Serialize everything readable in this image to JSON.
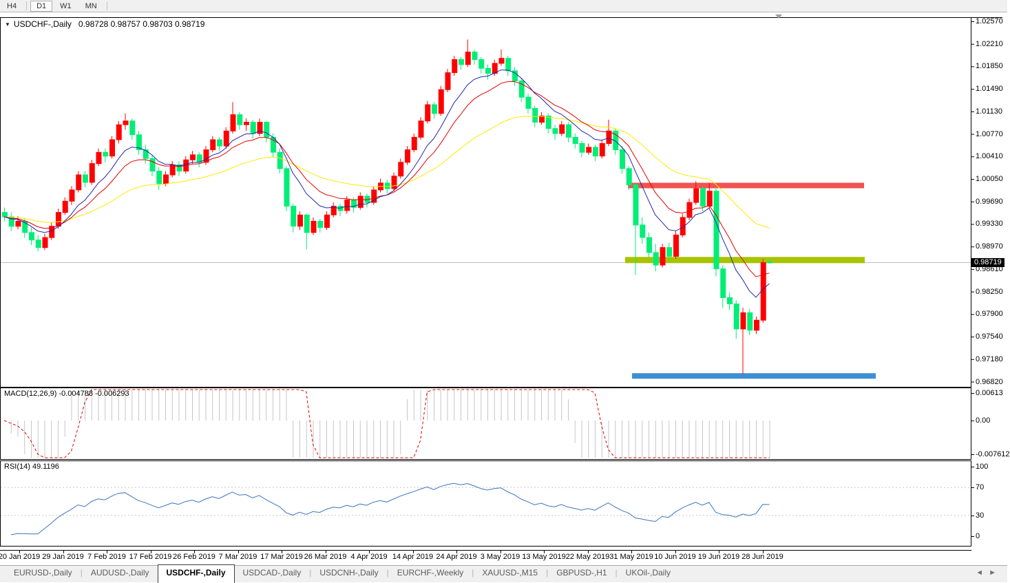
{
  "toolbar": {
    "timeframes": [
      {
        "label": "H4",
        "active": false,
        "sep_after": true
      },
      {
        "label": "D1",
        "active": true,
        "sep_after": false
      },
      {
        "label": "W1",
        "active": false,
        "sep_after": false
      },
      {
        "label": "MN",
        "active": false,
        "sep_after": true
      }
    ]
  },
  "chart": {
    "title": {
      "symbol": "USDCHF-,Daily",
      "ohlc": "0.98728 0.98757 0.98703 0.98719"
    },
    "price_axis": {
      "labels": [
        "1.02570",
        "1.02210",
        "1.01850",
        "1.01490",
        "1.01130",
        "1.00770",
        "1.00410",
        "1.00050",
        "0.99690",
        "0.99330",
        "0.98970",
        "0.98610",
        "0.98250",
        "0.97900",
        "0.97540",
        "0.97180",
        "0.96820"
      ],
      "current": "0.98719"
    },
    "date_axis": {
      "labels": [
        "20 Jan 2019",
        "29 Jan 2019",
        "7 Feb 2019",
        "17 Feb 2019",
        "26 Feb 2019",
        "7 Mar 2019",
        "17 Mar 2019",
        "26 Mar 2019",
        "4 Apr 2019",
        "14 Apr 2019",
        "24 Apr 2019",
        "3 May 2019",
        "13 May 2019",
        "22 May 2019",
        "31 May 2019",
        "10 Jun 2019",
        "19 Jun 2019",
        "28 Jun 2019"
      ]
    },
    "colors": {
      "up_candle": "#ff0000",
      "down_candle": "#00ee76",
      "ma_fast": "#2424aa",
      "ma_mid": "#e00000",
      "ma_slow": "#ffe800",
      "resistance_band": "#f05350",
      "mid_band": "#a8c400",
      "support_band": "#3d8fd1",
      "bid_line": "#bcbcbc",
      "macd_hist": "#c6c6c6",
      "macd_signal": "#e00000",
      "rsi_line": "#3b74c0"
    }
  },
  "macd": {
    "label": "MACD(12,26,9) -0.004788 -0.006293",
    "scale": [
      "0.00613",
      "0.00",
      "-0.007612"
    ],
    "params": [
      12,
      26,
      9
    ]
  },
  "rsi": {
    "label": "RSI(14) 49.1196",
    "scale": [
      "100",
      "70",
      "30",
      "0"
    ],
    "levels": [
      70,
      30
    ],
    "period": 14
  },
  "tabs": {
    "items": [
      {
        "label": "EURUSD-,Daily",
        "active": false
      },
      {
        "label": "AUDUSD-,Daily",
        "active": false
      },
      {
        "label": "USDCHF-,Daily",
        "active": true
      },
      {
        "label": "USDCAD-,Daily",
        "active": false
      },
      {
        "label": "USDCNH-,Daily",
        "active": false
      },
      {
        "label": "EURCHF-,Weekly",
        "active": false
      },
      {
        "label": "XAUUSD-,M15",
        "active": false
      },
      {
        "label": "GBPUSD-,H1",
        "active": false
      },
      {
        "label": "UKOil-,Daily",
        "active": false
      }
    ],
    "scroll_left": "◄",
    "scroll_right": "►"
  },
  "chart_data": {
    "type": "candlestick",
    "symbol": "USDCHF",
    "timeframe": "Daily",
    "x_range": [
      "20 Jan 2019",
      "28 Jun 2019"
    ],
    "y_range": [
      0.9682,
      1.0257
    ],
    "grid": false,
    "levels": [
      {
        "name": "resistance",
        "price": 0.9995,
        "x1": 912,
        "x2": 1255,
        "thickness": 8,
        "color_key": "resistance_band"
      },
      {
        "name": "broken-support",
        "price": 0.9876,
        "x1": 908,
        "x2": 1256,
        "thickness": 9,
        "color_key": "mid_band"
      },
      {
        "name": "support",
        "price": 0.9691,
        "x1": 918,
        "x2": 1272,
        "thickness": 8,
        "color_key": "support_band"
      }
    ],
    "moving_averages": [
      {
        "name": "fast",
        "period": 8,
        "color_key": "ma_fast"
      },
      {
        "name": "mid",
        "period": 13,
        "color_key": "ma_mid"
      },
      {
        "name": "slow",
        "period": 34,
        "color_key": "ma_slow"
      }
    ],
    "bid_price": 0.98719,
    "candles": [
      [
        0.9952,
        0.996,
        0.9938,
        0.9945
      ],
      [
        0.9945,
        0.9952,
        0.9922,
        0.993
      ],
      [
        0.993,
        0.9946,
        0.9925,
        0.9938
      ],
      [
        0.9938,
        0.9942,
        0.9912,
        0.992
      ],
      [
        0.992,
        0.9928,
        0.99,
        0.9908
      ],
      [
        0.9908,
        0.9916,
        0.989,
        0.9896
      ],
      [
        0.9896,
        0.9918,
        0.9892,
        0.9912
      ],
      [
        0.9912,
        0.9936,
        0.9908,
        0.993
      ],
      [
        0.993,
        0.9958,
        0.9926,
        0.9952
      ],
      [
        0.9952,
        0.9976,
        0.9948,
        0.997
      ],
      [
        0.997,
        0.9994,
        0.9964,
        0.9988
      ],
      [
        0.9988,
        1.0018,
        0.9984,
        1.0012
      ],
      [
        1.0012,
        1.0018,
        0.9992,
        1.0
      ],
      [
        1.0,
        1.0036,
        0.9996,
        1.003
      ],
      [
        1.003,
        1.0054,
        1.0026,
        1.0048
      ],
      [
        1.0048,
        1.0054,
        1.0032,
        1.0042
      ],
      [
        1.0042,
        1.0074,
        1.0038,
        1.0068
      ],
      [
        1.0068,
        1.0098,
        1.0062,
        1.0092
      ],
      [
        1.0092,
        1.011,
        1.0084,
        1.0098
      ],
      [
        1.0098,
        1.0102,
        1.0068,
        1.0076
      ],
      [
        1.0076,
        1.0082,
        1.0044,
        1.0052
      ],
      [
        1.0052,
        1.006,
        1.003,
        1.0038
      ],
      [
        1.0038,
        1.0044,
        1.001,
        1.0018
      ],
      [
        1.0018,
        1.0024,
        0.9988,
        0.9998
      ],
      [
        0.9998,
        1.0018,
        0.9994,
        1.0012
      ],
      [
        1.0012,
        1.0034,
        1.0008,
        1.0028
      ],
      [
        1.0028,
        1.0034,
        1.001,
        1.0018
      ],
      [
        1.0018,
        1.0042,
        1.0014,
        1.0036
      ],
      [
        1.0036,
        1.005,
        1.003,
        1.0044
      ],
      [
        1.0044,
        1.0048,
        1.0024,
        1.0032
      ],
      [
        1.0032,
        1.0058,
        1.0028,
        1.0052
      ],
      [
        1.0052,
        1.0074,
        1.0048,
        1.0068
      ],
      [
        1.0068,
        1.0072,
        1.005,
        1.0058
      ],
      [
        1.0058,
        1.0088,
        1.0054,
        1.0082
      ],
      [
        1.0082,
        1.0128,
        1.0078,
        1.0108
      ],
      [
        1.0108,
        1.0112,
        1.0084,
        1.0092
      ],
      [
        1.0092,
        1.0102,
        1.0082,
        1.0096
      ],
      [
        1.0096,
        1.01,
        1.007,
        1.0078
      ],
      [
        1.0078,
        1.0102,
        1.0074,
        1.0096
      ],
      [
        1.0096,
        1.0098,
        1.0064,
        1.0072
      ],
      [
        1.0072,
        1.0078,
        1.004,
        1.0048
      ],
      [
        1.0048,
        1.0054,
        1.0014,
        1.0022
      ],
      [
        1.0022,
        1.0026,
        0.9954,
        0.9962
      ],
      [
        0.9962,
        0.9966,
        0.992,
        0.993
      ],
      [
        0.993,
        0.9954,
        0.9924,
        0.9948
      ],
      [
        0.9948,
        0.995,
        0.9893,
        0.992
      ],
      [
        0.992,
        0.9944,
        0.9916,
        0.9938
      ],
      [
        0.9938,
        0.9942,
        0.992,
        0.9928
      ],
      [
        0.9928,
        0.9954,
        0.9924,
        0.9948
      ],
      [
        0.9948,
        0.9968,
        0.9944,
        0.9962
      ],
      [
        0.9962,
        0.9966,
        0.9946,
        0.9955
      ],
      [
        0.9955,
        0.9978,
        0.995,
        0.9972
      ],
      [
        0.9972,
        0.9976,
        0.9952,
        0.996
      ],
      [
        0.996,
        0.9984,
        0.9956,
        0.9978
      ],
      [
        0.9978,
        0.9982,
        0.996,
        0.9968
      ],
      [
        0.9968,
        0.9994,
        0.9964,
        0.9988
      ],
      [
        0.9988,
        1.0006,
        0.9984,
        0.9999
      ],
      [
        0.9999,
        1.0004,
        0.9982,
        0.999
      ],
      [
        0.999,
        1.0016,
        0.9986,
        1.001
      ],
      [
        1.001,
        1.0038,
        1.0006,
        1.0032
      ],
      [
        1.0032,
        1.0058,
        1.0028,
        1.0052
      ],
      [
        1.0052,
        1.0078,
        1.0048,
        1.0072
      ],
      [
        1.0072,
        1.0104,
        1.0068,
        1.0098
      ],
      [
        1.0098,
        1.013,
        1.0094,
        1.0124
      ],
      [
        1.0124,
        1.0128,
        1.0102,
        1.011
      ],
      [
        1.011,
        1.0154,
        1.0106,
        1.0148
      ],
      [
        1.0148,
        1.0181,
        1.0144,
        1.0175
      ],
      [
        1.0175,
        1.0202,
        1.017,
        1.0196
      ],
      [
        1.0196,
        1.02,
        1.018,
        1.0188
      ],
      [
        1.0188,
        1.0228,
        1.0184,
        1.0208
      ],
      [
        1.0208,
        1.0212,
        1.0188,
        1.0196
      ],
      [
        1.0196,
        1.02,
        1.0174,
        1.0182
      ],
      [
        1.0182,
        1.0188,
        1.0164,
        1.0174
      ],
      [
        1.0174,
        1.0196,
        1.017,
        1.019
      ],
      [
        1.019,
        1.0212,
        1.0186,
        1.0198
      ],
      [
        1.0198,
        1.0202,
        1.017,
        1.0178
      ],
      [
        1.0178,
        1.0184,
        1.0154,
        1.0162
      ],
      [
        1.0162,
        1.0166,
        1.0128,
        1.0136
      ],
      [
        1.0136,
        1.0142,
        1.011,
        1.0118
      ],
      [
        1.0118,
        1.0122,
        1.0088,
        1.0096
      ],
      [
        1.0096,
        1.0112,
        1.0092,
        1.0106
      ],
      [
        1.0106,
        1.011,
        1.0078,
        1.0086
      ],
      [
        1.0086,
        1.0092,
        1.0068,
        1.0078
      ],
      [
        1.0078,
        1.0098,
        1.0074,
        1.0092
      ],
      [
        1.0092,
        1.0096,
        1.0064,
        1.0072
      ],
      [
        1.0072,
        1.0078,
        1.0054,
        1.0062
      ],
      [
        1.0062,
        1.0066,
        1.004,
        1.0048
      ],
      [
        1.0048,
        1.0062,
        1.0044,
        1.0056
      ],
      [
        1.0056,
        1.006,
        1.0034,
        1.0042
      ],
      [
        1.0042,
        1.0068,
        1.0038,
        1.0062
      ],
      [
        1.0062,
        1.01,
        1.0058,
        1.0082
      ],
      [
        1.0082,
        1.0086,
        1.0044,
        1.0052
      ],
      [
        1.0052,
        1.0058,
        1.0014,
        1.0022
      ],
      [
        1.0022,
        1.0026,
        0.9988,
        0.9996
      ],
      [
        0.9996,
        1.0,
        0.9852,
        0.9932
      ],
      [
        0.9932,
        0.9944,
        0.9902,
        0.9912
      ],
      [
        0.9912,
        0.992,
        0.988,
        0.9888
      ],
      [
        0.9888,
        0.9902,
        0.9858,
        0.9868
      ],
      [
        0.9868,
        0.9902,
        0.9864,
        0.9896
      ],
      [
        0.9896,
        0.9904,
        0.9874,
        0.9882
      ],
      [
        0.9882,
        0.9922,
        0.9878,
        0.9916
      ],
      [
        0.9916,
        0.995,
        0.9912,
        0.9944
      ],
      [
        0.9944,
        0.9974,
        0.994,
        0.9968
      ],
      [
        0.9968,
        1.0002,
        0.9964,
        0.999
      ],
      [
        0.999,
        0.9994,
        0.9954,
        0.9962
      ],
      [
        0.9962,
        0.9999,
        0.9958,
        0.9986
      ],
      [
        0.9986,
        0.999,
        0.985,
        0.9862
      ],
      [
        0.9862,
        0.9868,
        0.98,
        0.9816
      ],
      [
        0.9816,
        0.9824,
        0.9796,
        0.9806
      ],
      [
        0.9806,
        0.9812,
        0.975,
        0.9766
      ],
      [
        0.9766,
        0.98,
        0.9694,
        0.9792
      ],
      [
        0.9792,
        0.9798,
        0.9756,
        0.9764
      ],
      [
        0.9764,
        0.9786,
        0.9758,
        0.978
      ],
      [
        0.978,
        0.9878,
        0.9776,
        0.9872
      ],
      [
        0.98728,
        0.98757,
        0.98703,
        0.98719
      ]
    ]
  }
}
